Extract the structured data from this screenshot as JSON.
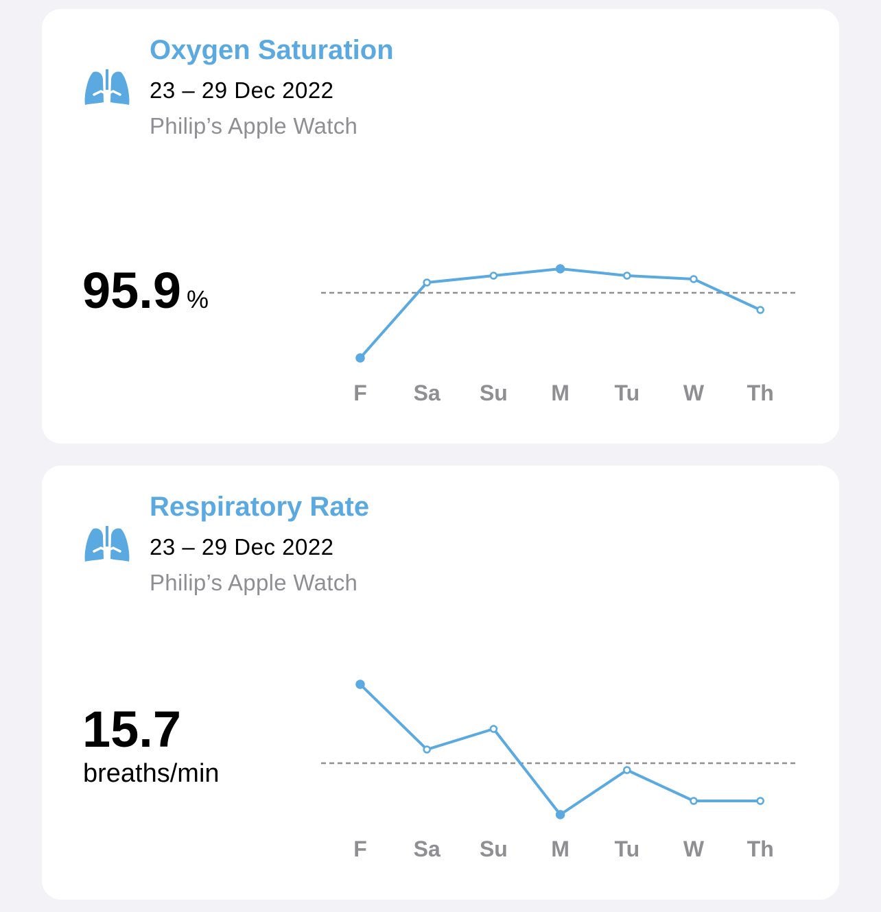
{
  "colors": {
    "accent": "#5aa9e0",
    "avg_line": "#8e8e93"
  },
  "chart_data": [
    {
      "type": "line",
      "title": "Oxygen Saturation",
      "date_range": "23 – 29 Dec 2022",
      "source": "Philip’s Apple Watch",
      "summary_value": "95.9",
      "summary_unit": "%",
      "average": 95.9,
      "categories": [
        "F",
        "Sa",
        "Su",
        "M",
        "Tu",
        "W",
        "Th"
      ],
      "values": [
        94.0,
        96.2,
        96.4,
        96.6,
        96.4,
        96.3,
        95.4
      ],
      "ylim": [
        93.64,
        97.04
      ],
      "xlabel": "",
      "ylabel": "",
      "grid": false,
      "highlight": [
        0,
        3
      ]
    },
    {
      "type": "line",
      "title": "Respiratory Rate",
      "date_range": "23 – 29 Dec 2022",
      "source": "Philip’s Apple Watch",
      "summary_value": "15.7",
      "summary_unit": "breaths/min",
      "average": 15.7,
      "categories": [
        "F",
        "Sa",
        "Su",
        "M",
        "Tu",
        "W",
        "Th"
      ],
      "values": [
        18.0,
        16.1,
        16.7,
        14.2,
        15.5,
        14.6,
        14.6
      ],
      "ylim": [
        13.96,
        18.56
      ],
      "xlabel": "",
      "ylabel": "",
      "grid": false,
      "highlight": [
        0,
        3
      ]
    }
  ]
}
